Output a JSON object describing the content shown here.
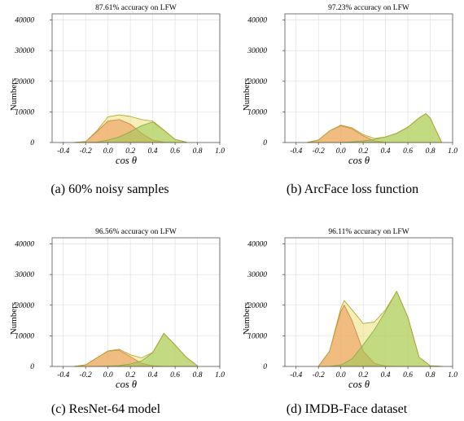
{
  "chart_data": [
    {
      "type": "area",
      "title": "87.61% accuracy on LFW",
      "xlabel": "cos θ",
      "ylabel": "Numbers",
      "caption": "(a)  60% noisy samples",
      "xlim": [
        -0.5,
        1.0
      ],
      "ylim": [
        0,
        42000
      ],
      "x_ticks": [
        "-0.4",
        "-0.2",
        "0.0",
        "0.2",
        "0.4",
        "0.6",
        "0.8",
        "1.0"
      ],
      "y_ticks": [
        "0",
        "10000",
        "20000",
        "30000",
        "40000"
      ],
      "grid": true,
      "x": [
        -0.3,
        -0.2,
        -0.1,
        0.0,
        0.1,
        0.2,
        0.3,
        0.4,
        0.5,
        0.6,
        0.7
      ],
      "series": [
        {
          "color": "#ee3322",
          "values": [
            0,
            300,
            3500,
            7000,
            7500,
            6000,
            3000,
            800,
            100,
            0,
            0
          ]
        },
        {
          "color": "#33aa22",
          "values": [
            0,
            0,
            100,
            800,
            1800,
            3500,
            5500,
            6700,
            4000,
            1000,
            100
          ]
        },
        {
          "color": "#ece27c",
          "values": [
            0,
            300,
            3800,
            8400,
            9000,
            8500,
            7500,
            7000,
            4100,
            1000,
            100
          ]
        }
      ]
    },
    {
      "type": "area",
      "title": "97.23% accuracy on LFW",
      "xlabel": "cos θ",
      "ylabel": "Numbers",
      "caption": "(b)  ArcFace loss function",
      "xlim": [
        -0.5,
        1.0
      ],
      "ylim": [
        0,
        42000
      ],
      "x_ticks": [
        "-0.4",
        "-0.2",
        "0.0",
        "0.2",
        "0.4",
        "0.6",
        "0.8",
        "1.0"
      ],
      "y_ticks": [
        "0",
        "10000",
        "20000",
        "30000",
        "40000"
      ],
      "grid": true,
      "x": [
        -0.3,
        -0.2,
        -0.1,
        0.0,
        0.1,
        0.2,
        0.3,
        0.4,
        0.5,
        0.6,
        0.7,
        0.76,
        0.8,
        0.9
      ],
      "series": [
        {
          "color": "#ee3322",
          "values": [
            0,
            800,
            3800,
            5500,
            4500,
            2200,
            500,
            50,
            0,
            0,
            0,
            0,
            0,
            0
          ]
        },
        {
          "color": "#33aa22",
          "values": [
            0,
            0,
            0,
            50,
            200,
            500,
            1000,
            1800,
            3000,
            5000,
            8000,
            9400,
            8000,
            100
          ]
        },
        {
          "color": "#ece27c",
          "values": [
            0,
            800,
            3800,
            5700,
            4800,
            2600,
            1300,
            1800,
            3000,
            5000,
            8000,
            9400,
            8000,
            100
          ]
        }
      ]
    },
    {
      "type": "area",
      "title": "96.56% accuracy on LFW",
      "xlabel": "cos θ",
      "ylabel": "Numbers",
      "caption": "(c)  ResNet-64 model",
      "xlim": [
        -0.5,
        1.0
      ],
      "ylim": [
        0,
        42000
      ],
      "x_ticks": [
        "-0.4",
        "-0.2",
        "0.0",
        "0.2",
        "0.4",
        "0.6",
        "0.8",
        "1.0"
      ],
      "y_ticks": [
        "0",
        "10000",
        "20000",
        "30000",
        "40000"
      ],
      "grid": true,
      "x": [
        -0.3,
        -0.2,
        -0.1,
        0.0,
        0.1,
        0.2,
        0.3,
        0.4,
        0.5,
        0.6,
        0.7,
        0.8
      ],
      "series": [
        {
          "color": "#ee3322",
          "values": [
            0,
            500,
            2800,
            5000,
            5300,
            3200,
            1000,
            200,
            0,
            0,
            0,
            0
          ]
        },
        {
          "color": "#33aa22",
          "values": [
            0,
            0,
            0,
            100,
            300,
            800,
            1800,
            4500,
            10800,
            7000,
            3000,
            200
          ]
        },
        {
          "color": "#ece27c",
          "values": [
            0,
            500,
            2800,
            5100,
            5600,
            3800,
            2800,
            4600,
            10800,
            7000,
            3000,
            200
          ]
        }
      ]
    },
    {
      "type": "area",
      "title": "96.11% accuracy on LFW",
      "xlabel": "cos θ",
      "ylabel": "Numbers",
      "caption": "(d)  IMDB-Face dataset",
      "xlim": [
        -0.5,
        1.0
      ],
      "ylim": [
        0,
        42000
      ],
      "x_ticks": [
        "-0.4",
        "-0.2",
        "0.0",
        "0.2",
        "0.4",
        "0.6",
        "0.8",
        "1.0"
      ],
      "y_ticks": [
        "0",
        "10000",
        "20000",
        "30000",
        "40000"
      ],
      "grid": true,
      "x": [
        -0.2,
        -0.1,
        0.0,
        0.03,
        0.1,
        0.2,
        0.3,
        0.4,
        0.5,
        0.6,
        0.7,
        0.8,
        0.9
      ],
      "series": [
        {
          "color": "#ee3322",
          "values": [
            0,
            5000,
            18000,
            20000,
            15000,
            5000,
            1000,
            100,
            0,
            0,
            0,
            0,
            0
          ]
        },
        {
          "color": "#33aa22",
          "values": [
            0,
            0,
            500,
            1000,
            2500,
            7000,
            12000,
            18000,
            24500,
            16000,
            3000,
            200,
            0
          ]
        },
        {
          "color": "#ece27c",
          "values": [
            0,
            5000,
            19000,
            21500,
            18500,
            14000,
            14500,
            18500,
            24500,
            16000,
            3000,
            200,
            0
          ]
        }
      ]
    }
  ]
}
